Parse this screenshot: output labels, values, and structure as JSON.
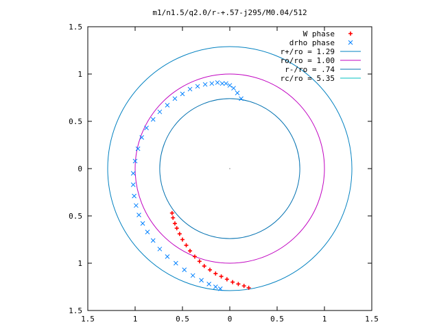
{
  "chart_data": {
    "type": "scatter",
    "title": "m1/n1.5/q2.0/r-+.57-j295/M0.04/512",
    "xlabel": "",
    "ylabel": "",
    "xlim": [
      -1.5,
      1.5
    ],
    "ylim": [
      -1.5,
      1.5
    ],
    "x_ticks": [
      -1.5,
      -1,
      -0.5,
      0,
      0.5,
      1,
      1.5
    ],
    "y_ticks": [
      -1.5,
      -1,
      -0.5,
      0,
      0.5,
      1,
      1.5
    ],
    "x_tick_labels": [
      "1.5",
      "1",
      "0.5",
      "0",
      "0.5",
      "1",
      "1.5"
    ],
    "y_tick_labels": [
      "1.5",
      "1",
      "0.5",
      "0",
      "0.5",
      "1",
      "1.5"
    ],
    "grid": false,
    "legend_position": "top-right",
    "legend": [
      {
        "label": "W phase",
        "marker": "+",
        "color": "#ff0000"
      },
      {
        "label": "drho phase",
        "marker": "x",
        "color": "#0080ff"
      },
      {
        "label": "r+/ro = 1.29",
        "marker": "line",
        "color": "#0080c0"
      },
      {
        "label": "ro/ro = 1.00",
        "marker": "line",
        "color": "#c000c0"
      },
      {
        "label": "r-/ro = .74",
        "marker": "line",
        "color": "#0070b0"
      },
      {
        "label": "rc/ro = 5.35",
        "marker": "line",
        "color": "#00c0c0"
      }
    ],
    "circles": [
      {
        "name": "r+/ro = 1.29",
        "radius": 1.29,
        "color": "#0080c0"
      },
      {
        "name": "ro/ro = 1.00",
        "radius": 1.0,
        "color": "#c000c0"
      },
      {
        "name": "r-/ro = .74",
        "radius": 0.74,
        "color": "#0070b0"
      }
    ],
    "series": [
      {
        "name": "W phase",
        "marker": "+",
        "color": "#ff0000",
        "x": [
          -0.61,
          -0.6,
          -0.58,
          -0.56,
          -0.53,
          -0.5,
          -0.46,
          -0.42,
          -0.37,
          -0.32,
          -0.27,
          -0.21,
          -0.15,
          -0.09,
          -0.03,
          0.03,
          0.09,
          0.15,
          0.2
        ],
        "y": [
          -0.47,
          -0.52,
          -0.58,
          -0.63,
          -0.69,
          -0.75,
          -0.81,
          -0.87,
          -0.93,
          -0.98,
          -1.03,
          -1.07,
          -1.11,
          -1.14,
          -1.17,
          -1.2,
          -1.22,
          -1.24,
          -1.26
        ]
      },
      {
        "name": "drho phase",
        "marker": "x",
        "color": "#0080ff",
        "x": [
          0.12,
          0.08,
          0.04,
          0.0,
          -0.04,
          -0.08,
          -0.13,
          -0.19,
          -0.26,
          -0.34,
          -0.42,
          -0.5,
          -0.58,
          -0.66,
          -0.74,
          -0.81,
          -0.88,
          -0.93,
          -0.97,
          -1.0,
          -1.02,
          -1.02,
          -1.01,
          -0.99,
          -0.96,
          -0.92,
          -0.87,
          -0.81,
          -0.74,
          -0.66,
          -0.57,
          -0.48,
          -0.39,
          -0.3,
          -0.22,
          -0.15,
          -0.1
        ],
        "y": [
          0.74,
          0.8,
          0.85,
          0.88,
          0.9,
          0.9,
          0.91,
          0.9,
          0.89,
          0.87,
          0.84,
          0.79,
          0.74,
          0.67,
          0.6,
          0.52,
          0.43,
          0.33,
          0.21,
          0.08,
          -0.05,
          -0.17,
          -0.29,
          -0.39,
          -0.49,
          -0.58,
          -0.67,
          -0.76,
          -0.85,
          -0.93,
          -1.0,
          -1.07,
          -1.13,
          -1.18,
          -1.22,
          -1.25,
          -1.27
        ]
      }
    ]
  }
}
